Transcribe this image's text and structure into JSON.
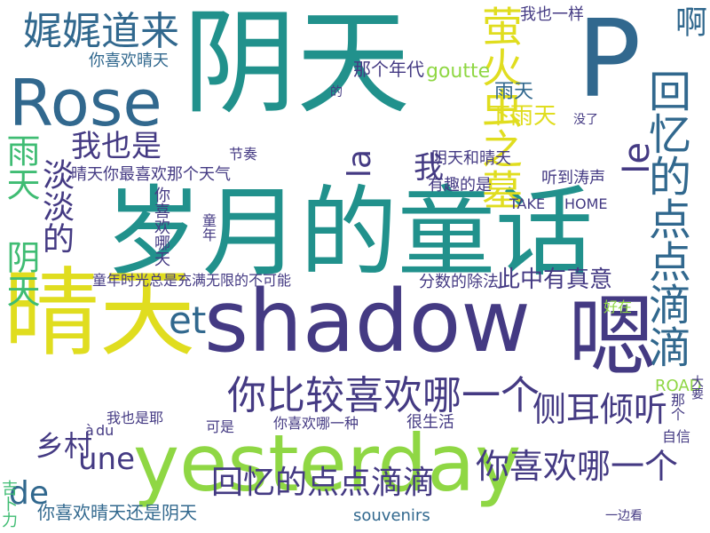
{
  "palette": {
    "background": "#ffffff",
    "yellow": "#e0dd1f",
    "lime": "#8fd744",
    "green": "#3fbc73",
    "teal": "#21918c",
    "blue": "#31688e",
    "indigo": "#443a83",
    "purple": "#440154"
  },
  "words": [
    {
      "text": "阴天",
      "color": "teal"
    },
    {
      "text": "岁月的童话",
      "color": "teal"
    },
    {
      "text": "晴天",
      "color": "yellow"
    },
    {
      "text": "shadow",
      "color": "indigo"
    },
    {
      "text": "yesterday",
      "color": "lime"
    },
    {
      "text": "Rose",
      "color": "blue"
    },
    {
      "text": "P",
      "color": "blue"
    },
    {
      "text": "嗯",
      "color": "indigo"
    },
    {
      "text": "回忆的点点滴滴",
      "color": "blue"
    },
    {
      "text": "你比较喜欢哪一个",
      "color": "indigo"
    },
    {
      "text": "萤火虫之墓",
      "color": "yellow"
    },
    {
      "text": "娓娓道来",
      "color": "blue"
    },
    {
      "text": "你喜欢哪一个",
      "color": "indigo"
    },
    {
      "text": "回忆的点点滴滴",
      "color": "indigo"
    },
    {
      "text": "侧耳倾听",
      "color": "indigo"
    },
    {
      "text": "雨天 阴天",
      "color": "green"
    },
    {
      "text": "淡淡的",
      "color": "indigo"
    },
    {
      "text": "我也是",
      "color": "indigo"
    },
    {
      "text": "啊",
      "color": "blue"
    },
    {
      "text": "下雨天",
      "color": "yellow"
    },
    {
      "text": "la",
      "color": "indigo"
    },
    {
      "text": "et",
      "color": "blue"
    },
    {
      "text": "le",
      "color": "indigo"
    },
    {
      "text": "une",
      "color": "indigo"
    },
    {
      "text": "de",
      "color": "blue"
    },
    {
      "text": "乡村",
      "color": "indigo"
    },
    {
      "text": "晴天你最喜欢那个天气",
      "color": "indigo"
    },
    {
      "text": "雨天",
      "color": "blue"
    },
    {
      "text": "我",
      "color": "indigo"
    },
    {
      "text": "你喜欢哪天",
      "color": "indigo"
    },
    {
      "text": "此中有真意",
      "color": "indigo"
    },
    {
      "text": "你喜欢晴天",
      "color": "blue"
    },
    {
      "text": "你喜欢晴天还是阴天",
      "color": "blue"
    },
    {
      "text": "那个年代",
      "color": "indigo"
    },
    {
      "text": "阴天和晴天",
      "color": "indigo"
    },
    {
      "text": "我也一样",
      "color": "indigo"
    },
    {
      "text": "童年时光总是充满无限的不可能",
      "color": "indigo"
    },
    {
      "text": "分数的除法",
      "color": "indigo"
    },
    {
      "text": "你喜欢哪一种",
      "color": "indigo"
    },
    {
      "text": "我也是耶",
      "color": "indigo"
    },
    {
      "text": "很生活",
      "color": "indigo"
    },
    {
      "text": "有趣的是",
      "color": "indigo"
    },
    {
      "text": "听到涛声",
      "color": "indigo"
    },
    {
      "text": "goutte",
      "color": "lime"
    },
    {
      "text": "TAKE",
      "color": "indigo"
    },
    {
      "text": "HOME",
      "color": "indigo"
    },
    {
      "text": "ROAD",
      "color": "lime"
    },
    {
      "text": "souvenirs",
      "color": "blue"
    },
    {
      "text": "à",
      "color": "indigo"
    },
    {
      "text": "du",
      "color": "indigo"
    },
    {
      "text": "节奏",
      "color": "indigo"
    },
    {
      "text": "童年",
      "color": "indigo"
    },
    {
      "text": "没了",
      "color": "indigo"
    },
    {
      "text": "好在",
      "color": "lime"
    },
    {
      "text": "可是",
      "color": "indigo"
    },
    {
      "text": "自信",
      "color": "indigo"
    },
    {
      "text": "一边看",
      "color": "indigo"
    },
    {
      "text": "那个",
      "color": "indigo"
    },
    {
      "text": "大要",
      "color": "indigo"
    },
    {
      "text": "吉卜力",
      "color": "green"
    },
    {
      "text": "的",
      "color": "indigo"
    },
    {
      "text": "你喜欢晴天",
      "color": "green"
    },
    {
      "text": "有趣的是",
      "color": "blue"
    }
  ]
}
